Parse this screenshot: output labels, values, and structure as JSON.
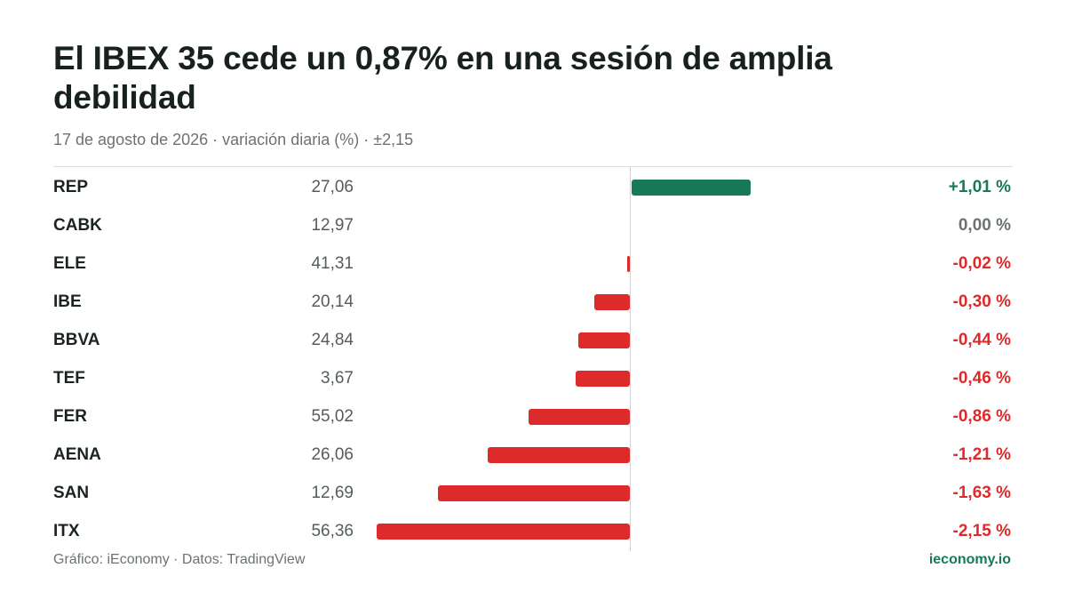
{
  "header": {
    "title": "El IBEX 35 cede un 0,87% en una sesión de amplia debilidad",
    "subtitle": "17 de agosto de 2026 · variación diaria (%) · ±2,15"
  },
  "footer": {
    "source": "Gráfico: iEconomy · Datos: TradingView",
    "brand": "ieconomy.io"
  },
  "colors": {
    "positive": "#157a55",
    "negative": "#dd2a2a",
    "neutral": "#6b7370"
  },
  "chart_data": {
    "type": "bar",
    "orientation": "horizontal",
    "scale_max_abs": 2.15,
    "rows": [
      {
        "ticker": "REP",
        "price": "27,06",
        "value": 1.01,
        "label": "+1,01 %"
      },
      {
        "ticker": "CABK",
        "price": "12,97",
        "value": 0.0,
        "label": "0,00 %"
      },
      {
        "ticker": "ELE",
        "price": "41,31",
        "value": -0.02,
        "label": "-0,02 %"
      },
      {
        "ticker": "IBE",
        "price": "20,14",
        "value": -0.3,
        "label": "-0,30 %"
      },
      {
        "ticker": "BBVA",
        "price": "24,84",
        "value": -0.44,
        "label": "-0,44 %"
      },
      {
        "ticker": "TEF",
        "price": "3,67",
        "value": -0.46,
        "label": "-0,46 %"
      },
      {
        "ticker": "FER",
        "price": "55,02",
        "value": -0.86,
        "label": "-0,86 %"
      },
      {
        "ticker": "AENA",
        "price": "26,06",
        "value": -1.21,
        "label": "-1,21 %"
      },
      {
        "ticker": "SAN",
        "price": "12,69",
        "value": -1.63,
        "label": "-1,63 %"
      },
      {
        "ticker": "ITX",
        "price": "56,36",
        "value": -2.15,
        "label": "-2,15 %"
      }
    ]
  }
}
